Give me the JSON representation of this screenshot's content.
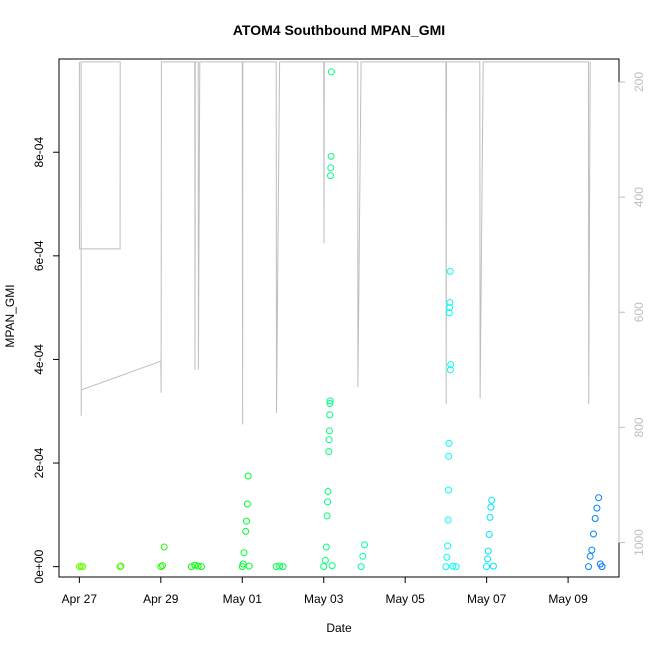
{
  "chart_data": {
    "type": "scatter",
    "title": "ATOM4 Southbound MPAN_GMI",
    "xlabel": "Date",
    "ylabel": "MPAN_GMI",
    "x_ticks": [
      "Apr 27",
      "Apr 29",
      "May 01",
      "May 03",
      "May 05",
      "May 07",
      "May 09"
    ],
    "y_ticks": [
      "0e+00",
      "2e-04",
      "4e-04",
      "6e-04",
      "8e-04"
    ],
    "y_tick_values": [
      0,
      0.0002,
      0.0004,
      0.0006,
      0.0008
    ],
    "y_right_ticks": [
      200,
      400,
      600,
      800,
      1000
    ],
    "xlim": [
      "2017-04-26 12:00",
      "2017-05-10 06:00"
    ],
    "ylim": [
      -2e-05,
      0.00098
    ],
    "y_right_lim": [
      1060,
      160
    ],
    "series": [
      {
        "role": "MPAN_GMI (points, colored by date)",
        "points": [
          [
            "2017-04-27 00:00",
            0.0
          ],
          [
            "2017-04-27 01:00",
            1e-06
          ],
          [
            "2017-04-27 02:00",
            0.0
          ],
          [
            "2017-04-28 00:00",
            0.0
          ],
          [
            "2017-04-28 00:30",
            1e-06
          ],
          [
            "2017-04-29 00:00",
            0.0
          ],
          [
            "2017-04-29 01:00",
            2e-06
          ],
          [
            "2017-04-29 02:00",
            3.8e-05
          ],
          [
            "2017-04-29 18:00",
            0.0
          ],
          [
            "2017-04-29 20:00",
            3e-06
          ],
          [
            "2017-04-29 22:00",
            1e-06
          ],
          [
            "2017-04-30 00:00",
            0.0
          ],
          [
            "2017-05-01 00:00",
            0.0
          ],
          [
            "2017-05-01 00:30",
            5e-06
          ],
          [
            "2017-05-01 01:00",
            2.7e-05
          ],
          [
            "2017-05-01 02:00",
            6.8e-05
          ],
          [
            "2017-05-01 02:30",
            8.8e-05
          ],
          [
            "2017-05-01 03:00",
            0.000121
          ],
          [
            "2017-05-01 03:30",
            0.000175
          ],
          [
            "2017-05-01 04:00",
            1e-06
          ],
          [
            "2017-05-01 20:00",
            0.0
          ],
          [
            "2017-05-01 22:00",
            1e-06
          ],
          [
            "2017-05-02 00:00",
            0.0
          ],
          [
            "2017-05-03 00:00",
            0.0
          ],
          [
            "2017-05-03 01:00",
            1.2e-05
          ],
          [
            "2017-05-03 01:30",
            3.8e-05
          ],
          [
            "2017-05-03 02:00",
            9.8e-05
          ],
          [
            "2017-05-03 02:15",
            0.000125
          ],
          [
            "2017-05-03 02:30",
            0.000145
          ],
          [
            "2017-05-03 03:00",
            0.000222
          ],
          [
            "2017-05-03 03:10",
            0.000245
          ],
          [
            "2017-05-03 03:20",
            0.000262
          ],
          [
            "2017-05-03 03:30",
            0.000293
          ],
          [
            "2017-05-03 03:40",
            0.000315
          ],
          [
            "2017-05-03 03:50",
            0.00032
          ],
          [
            "2017-05-03 04:00",
            0.000755
          ],
          [
            "2017-05-03 04:10",
            0.00077
          ],
          [
            "2017-05-03 04:20",
            0.000792
          ],
          [
            "2017-05-03 04:30",
            0.000955
          ],
          [
            "2017-05-03 05:00",
            2e-06
          ],
          [
            "2017-05-03 22:00",
            0.0
          ],
          [
            "2017-05-03 23:00",
            2e-05
          ],
          [
            "2017-05-04 00:00",
            4.2e-05
          ],
          [
            "2017-05-06 00:00",
            0.0
          ],
          [
            "2017-05-06 00:30",
            1.8e-05
          ],
          [
            "2017-05-06 01:00",
            4e-05
          ],
          [
            "2017-05-06 01:20",
            9e-05
          ],
          [
            "2017-05-06 01:30",
            0.000148
          ],
          [
            "2017-05-06 01:40",
            0.000213
          ],
          [
            "2017-05-06 01:50",
            0.000238
          ],
          [
            "2017-05-06 02:00",
            0.00049
          ],
          [
            "2017-05-06 02:10",
            0.0005
          ],
          [
            "2017-05-06 02:20",
            0.00051
          ],
          [
            "2017-05-06 02:30",
            0.00057
          ],
          [
            "2017-05-06 02:40",
            0.00038
          ],
          [
            "2017-05-06 02:50",
            0.00039
          ],
          [
            "2017-05-06 04:00",
            1e-06
          ],
          [
            "2017-05-06 06:00",
            0.0
          ],
          [
            "2017-05-07 00:00",
            0.0
          ],
          [
            "2017-05-07 00:30",
            1.5e-05
          ],
          [
            "2017-05-07 01:00",
            3e-05
          ],
          [
            "2017-05-07 01:30",
            6.2e-05
          ],
          [
            "2017-05-07 02:00",
            9.5e-05
          ],
          [
            "2017-05-07 02:30",
            0.000115
          ],
          [
            "2017-05-07 03:00",
            0.000128
          ],
          [
            "2017-05-07 04:00",
            1e-06
          ],
          [
            "2017-05-09 12:00",
            0.0
          ],
          [
            "2017-05-09 13:00",
            2e-05
          ],
          [
            "2017-05-09 14:00",
            3.2e-05
          ],
          [
            "2017-05-09 15:00",
            6.3e-05
          ],
          [
            "2017-05-09 16:00",
            9.3e-05
          ],
          [
            "2017-05-09 17:00",
            0.000113
          ],
          [
            "2017-05-09 18:00",
            0.000133
          ],
          [
            "2017-05-09 19:00",
            5e-06
          ],
          [
            "2017-05-09 20:00",
            0.0
          ]
        ]
      },
      {
        "role": "pressure (grey line, right axis, reversed)",
        "points": [
          [
            "2017-04-27 00:00",
            165
          ],
          [
            "2017-04-27 00:05",
            490
          ],
          [
            "2017-04-27 00:10",
            490
          ],
          [
            "2017-04-28 00:00",
            490
          ],
          [
            "2017-04-28 00:05",
            165
          ],
          [
            "2017-04-27 01:00",
            165
          ],
          [
            "2017-04-27 01:05",
            780
          ],
          [
            "2017-04-27 01:10",
            735
          ],
          [
            "2017-04-29 00:00",
            685
          ],
          [
            "2017-04-29 00:10",
            740
          ],
          [
            "2017-04-29 00:20",
            165
          ],
          [
            "2017-04-29 20:00",
            165
          ],
          [
            "2017-04-29 20:10",
            700
          ],
          [
            "2017-04-29 20:20",
            165
          ],
          [
            "2017-04-29 22:00",
            165
          ],
          [
            "2017-04-29 22:10",
            700
          ],
          [
            "2017-04-29 23:00",
            165
          ],
          [
            "2017-05-01 00:00",
            165
          ],
          [
            "2017-05-01 00:10",
            795
          ],
          [
            "2017-05-01 00:20",
            165
          ],
          [
            "2017-05-01 20:00",
            165
          ],
          [
            "2017-05-01 20:10",
            775
          ],
          [
            "2017-05-01 22:00",
            165
          ],
          [
            "2017-05-03 00:00",
            165
          ],
          [
            "2017-05-03 00:10",
            480
          ],
          [
            "2017-05-03 00:20",
            165
          ],
          [
            "2017-05-03 20:00",
            165
          ],
          [
            "2017-05-03 20:10",
            730
          ],
          [
            "2017-05-03 22:00",
            165
          ],
          [
            "2017-05-06 00:00",
            165
          ],
          [
            "2017-05-06 00:10",
            760
          ],
          [
            "2017-05-06 00:20",
            165
          ],
          [
            "2017-05-06 20:00",
            165
          ],
          [
            "2017-05-06 20:10",
            750
          ],
          [
            "2017-05-06 22:00",
            165
          ],
          [
            "2017-05-09 12:00",
            165
          ],
          [
            "2017-05-09 12:10",
            760
          ],
          [
            "2017-05-09 13:00",
            165
          ]
        ]
      }
    ],
    "grid": false,
    "legend": "none"
  }
}
